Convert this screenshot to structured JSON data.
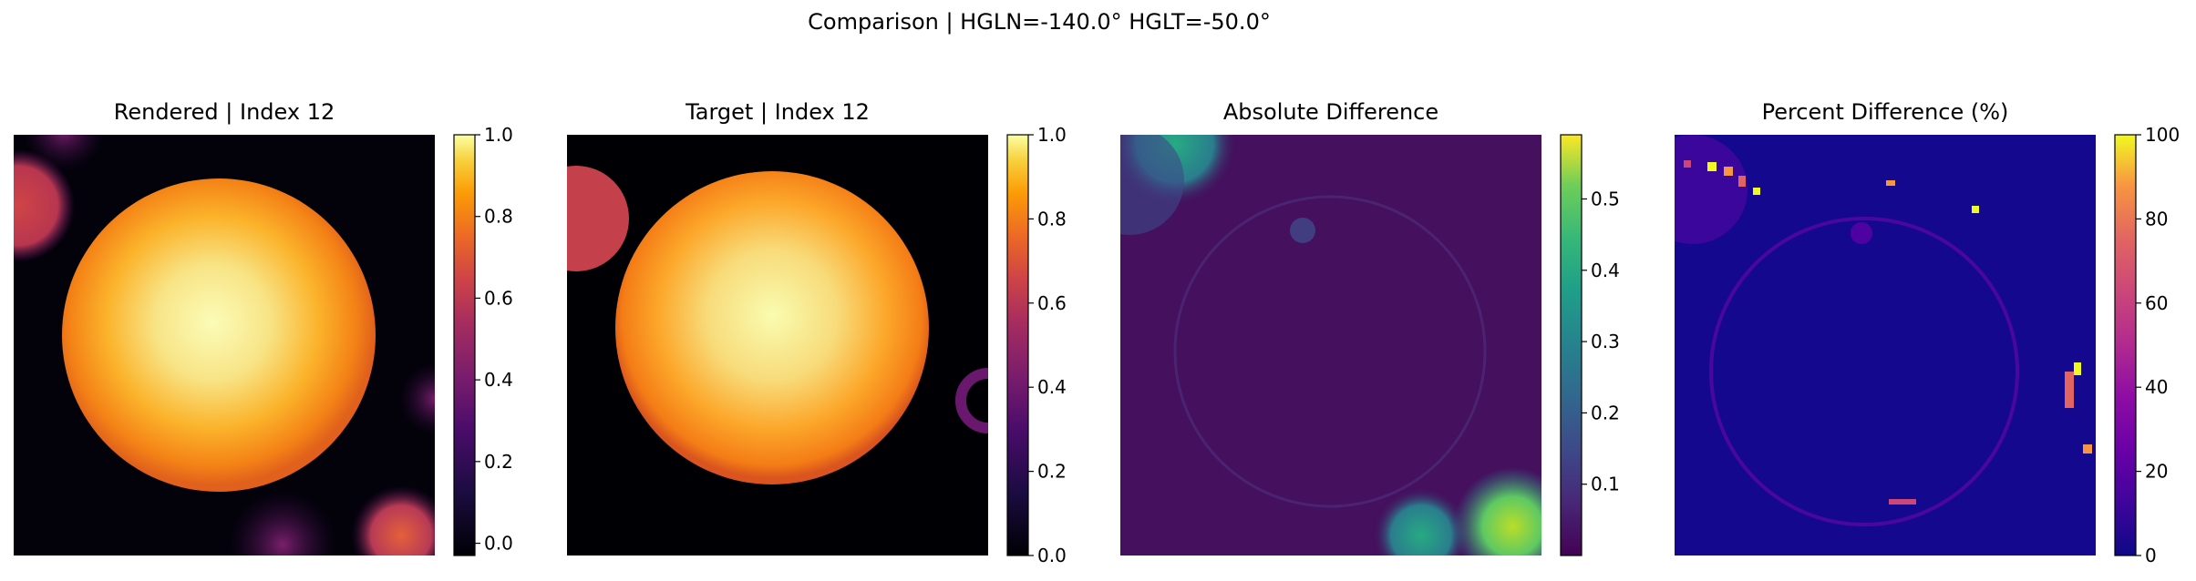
{
  "suptitle": "Comparison | HGLN=-140.0° HGLT=-50.0°",
  "chart_data": [
    {
      "type": "heatmap",
      "title": "Rendered | Index 12",
      "colormap": "inferno",
      "clim": [
        -0.03,
        1.0
      ],
      "colorbar_ticks": [
        0.0,
        0.2,
        0.4,
        0.6,
        0.8,
        1.0
      ],
      "colorbar_tick_labels": [
        "0.0",
        "0.2",
        "0.4",
        "0.6",
        "0.8",
        "1.0"
      ],
      "axes_visible": false
    },
    {
      "type": "heatmap",
      "title": "Target | Index 12",
      "colormap": "inferno",
      "clim": [
        0.0,
        1.0
      ],
      "colorbar_ticks": [
        0.0,
        0.2,
        0.4,
        0.6,
        0.8,
        1.0
      ],
      "colorbar_tick_labels": [
        "0.0",
        "0.2",
        "0.4",
        "0.6",
        "0.8",
        "1.0"
      ],
      "axes_visible": false
    },
    {
      "type": "heatmap",
      "title": "Absolute Difference",
      "colormap": "viridis",
      "clim": [
        0.0,
        0.59
      ],
      "colorbar_ticks": [
        0.1,
        0.2,
        0.3,
        0.4,
        0.5
      ],
      "colorbar_tick_labels": [
        "0.1",
        "0.2",
        "0.3",
        "0.4",
        "0.5"
      ],
      "axes_visible": false
    },
    {
      "type": "heatmap",
      "title": "Percent Difference (%)",
      "colormap": "plasma",
      "clim": [
        0,
        100
      ],
      "colorbar_ticks": [
        0,
        20,
        40,
        60,
        80,
        100
      ],
      "colorbar_tick_labels": [
        "0",
        "20",
        "40",
        "60",
        "80",
        "100"
      ],
      "axes_visible": false
    }
  ]
}
